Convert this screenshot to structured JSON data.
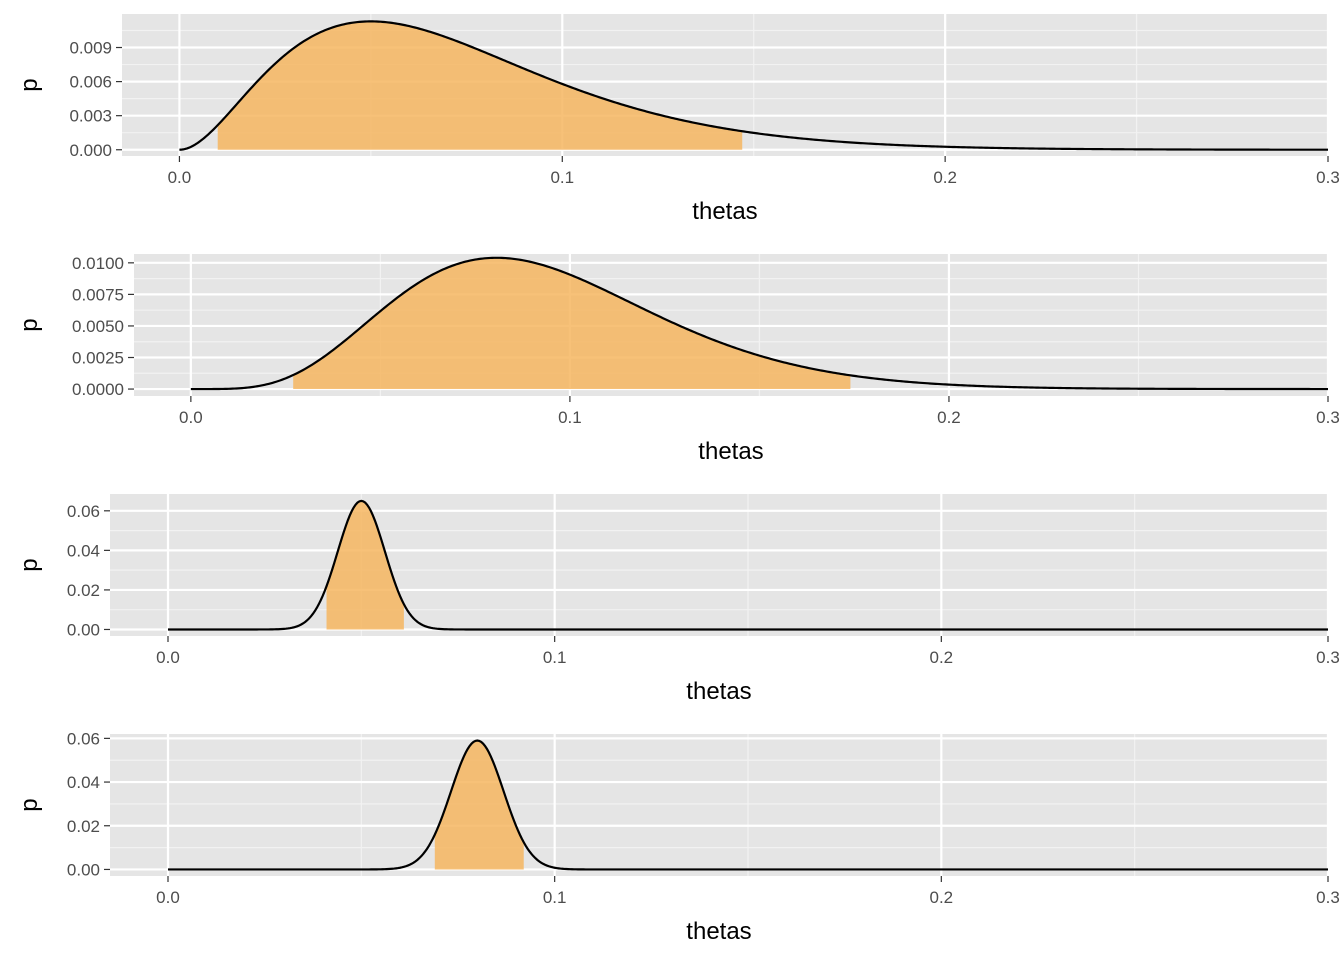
{
  "colors": {
    "panel_background": "#e5e5e5",
    "grid_major": "#ffffff",
    "grid_minor": "#f2f2f2",
    "fill": "#f5b35a",
    "line": "#000000"
  },
  "chart_data": [
    {
      "type": "area",
      "xlabel": "thetas",
      "ylabel": "p",
      "x_ticks": [
        "0.0",
        "0.1",
        "0.2",
        "0.3"
      ],
      "x_tick_values": [
        0,
        0.1,
        0.2,
        0.3
      ],
      "y_ticks": [
        "0.000",
        "0.003",
        "0.006",
        "0.009"
      ],
      "y_tick_values": [
        0,
        0.003,
        0.006,
        0.009
      ],
      "xlim": [
        -0.015,
        0.3
      ],
      "ylim": [
        -0.00055,
        0.01195
      ],
      "grid": true,
      "curve": {
        "distribution": "beta",
        "alpha": 3,
        "beta": 39,
        "x_start": 0,
        "x_end": 0.3,
        "peak_p": 0.0113
      },
      "shaded_interval": [
        0.01,
        0.147
      ]
    },
    {
      "type": "area",
      "xlabel": "thetas",
      "ylabel": "p",
      "x_ticks": [
        "0.0",
        "0.1",
        "0.2",
        "0.3"
      ],
      "x_tick_values": [
        0,
        0.1,
        0.2,
        0.3
      ],
      "y_ticks": [
        "0.0000",
        "0.0025",
        "0.0050",
        "0.0075",
        "0.0100"
      ],
      "y_tick_values": [
        0,
        0.0025,
        0.005,
        0.0075,
        0.01
      ],
      "xlim": [
        -0.015,
        0.3
      ],
      "ylim": [
        -0.00055,
        0.0107
      ],
      "grid": true,
      "curve": {
        "distribution": "beta",
        "alpha": 6,
        "beta": 58,
        "x_start": 0,
        "x_end": 0.3,
        "peak_p": 0.0104
      },
      "shaded_interval": [
        0.027,
        0.174
      ]
    },
    {
      "type": "area",
      "xlabel": "thetas",
      "ylabel": "p",
      "x_ticks": [
        "0.0",
        "0.1",
        "0.2",
        "0.3"
      ],
      "x_tick_values": [
        0,
        0.1,
        0.2,
        0.3
      ],
      "y_ticks": [
        "0.00",
        "0.02",
        "0.04",
        "0.06"
      ],
      "y_tick_values": [
        0,
        0.02,
        0.04,
        0.06
      ],
      "xlim": [
        -0.015,
        0.3
      ],
      "ylim": [
        -0.0033,
        0.0685
      ],
      "grid": true,
      "curve": {
        "distribution": "normal",
        "mean": 0.05,
        "sd": 0.0061,
        "x_start": 0,
        "x_end": 0.3,
        "peak_p": 0.065
      },
      "shaded_interval": [
        0.041,
        0.061
      ]
    },
    {
      "type": "area",
      "xlabel": "thetas",
      "ylabel": "p",
      "x_ticks": [
        "0.0",
        "0.1",
        "0.2",
        "0.3"
      ],
      "x_tick_values": [
        0,
        0.1,
        0.2,
        0.3
      ],
      "y_ticks": [
        "0.00",
        "0.02",
        "0.04",
        "0.06"
      ],
      "y_tick_values": [
        0,
        0.02,
        0.04,
        0.06
      ],
      "xlim": [
        -0.015,
        0.3
      ],
      "ylim": [
        -0.003,
        0.062
      ],
      "grid": true,
      "curve": {
        "distribution": "normal",
        "mean": 0.08,
        "sd": 0.0068,
        "x_start": 0,
        "x_end": 0.3,
        "peak_p": 0.059
      },
      "shaded_interval": [
        0.069,
        0.092
      ]
    }
  ]
}
